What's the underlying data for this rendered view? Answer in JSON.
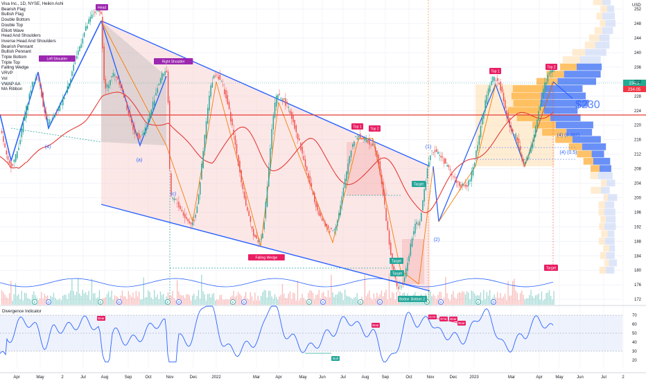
{
  "chart_data": {
    "type": "line",
    "title": "Visa Inc., 1D, NYSE, Heikin Ashi",
    "currency": "USD",
    "price_axis": {
      "ticks": [
        252,
        248,
        244,
        240,
        236,
        232,
        228,
        224,
        220,
        216,
        212,
        208,
        204,
        200,
        196,
        192,
        188,
        184,
        180,
        176,
        172
      ],
      "range": [
        170.5,
        254.5
      ]
    },
    "time_axis": [
      "Apr",
      "May",
      "2",
      "Jul",
      "Aug",
      "Sep",
      "Oct",
      "Nov",
      "Dec",
      "2022",
      "Mar",
      "Apr",
      "May",
      "Jun",
      "Jul",
      "Aug",
      "Sep",
      "Oct",
      "Nov",
      "Dec",
      "2023",
      "Mar",
      "Apr",
      "May",
      "Jun",
      "Jul",
      "2"
    ],
    "last_price": 234.5,
    "secondary_price": 234.05,
    "target_price_label": "$230",
    "patterns_menu": [
      "Bearish Flag",
      "Bullish Flag",
      "Double Bottom",
      "Double Top",
      "Elliott Wave",
      "Head And Shoulders",
      "Inverse Head And Shoulders",
      "Bearish Pennant",
      "Bullish Pennant",
      "Triple Bottom",
      "Triple Top",
      "Falling Wedge",
      "VRVP",
      "Vol",
      "VWAP AA",
      "MA Ribbon"
    ],
    "pattern_labels": [
      "Head",
      "Left Shoulder",
      "Right Shoulder",
      "Falling Wedge",
      "Top 1",
      "Top 2",
      "Top 1",
      "Top 2",
      "Target",
      "Target",
      "Target",
      "Target",
      "Bottom",
      "Bottom 2"
    ],
    "wave_labels": [
      "(4)",
      "(a)",
      "(c)",
      "(1)",
      "(2)",
      "(4) (0.382)",
      "(4) (0.5)"
    ],
    "events": [
      "E",
      "D"
    ],
    "price_key_points": [
      {
        "x": "2021-03",
        "y": 219
      },
      {
        "x": "2021-04",
        "y": 209
      },
      {
        "x": "2021-05",
        "y": 233
      },
      {
        "x": "2021-05",
        "y": 221
      },
      {
        "x": "2021-07",
        "y": 252
      },
      {
        "x": "2021-07",
        "y": 230
      },
      {
        "x": "2021-08",
        "y": 234
      },
      {
        "x": "2021-09",
        "y": 217
      },
      {
        "x": "2021-10",
        "y": 235
      },
      {
        "x": "2021-11",
        "y": 200
      },
      {
        "x": "2021-12",
        "y": 193
      },
      {
        "x": "2022-01",
        "y": 234
      },
      {
        "x": "2022-03",
        "y": 188
      },
      {
        "x": "2022-03",
        "y": 228
      },
      {
        "x": "2022-05",
        "y": 191
      },
      {
        "x": "2022-07",
        "y": 217
      },
      {
        "x": "2022-08",
        "y": 215
      },
      {
        "x": "2022-09",
        "y": 175
      },
      {
        "x": "2022-10",
        "y": 193
      },
      {
        "x": "2022-11",
        "y": 213
      },
      {
        "x": "2022-12",
        "y": 203
      },
      {
        "x": "2023-01",
        "y": 233
      },
      {
        "x": "2023-02",
        "y": 217
      },
      {
        "x": "2023-03",
        "y": 210
      },
      {
        "x": "2023-04",
        "y": 235
      }
    ],
    "oscillator": {
      "name": "Divergence Indicator",
      "ticks": [
        70.0,
        60.0,
        50.0,
        40.0,
        30.0,
        20.0
      ],
      "band": [
        30,
        70
      ],
      "labels": [
        "Bear",
        "Bull",
        "Bear",
        "Bear",
        "Bear",
        "Bear",
        "Bear"
      ]
    },
    "grid": true
  },
  "colors": {
    "bull": "#26a69a",
    "bear": "#ef5350",
    "trendline": "#2962ff",
    "pattern": "#f57c00",
    "ma_red": "#e53935",
    "ma_green": "#43a047",
    "last_price": "#22ab94",
    "secondary": "#f23645"
  }
}
